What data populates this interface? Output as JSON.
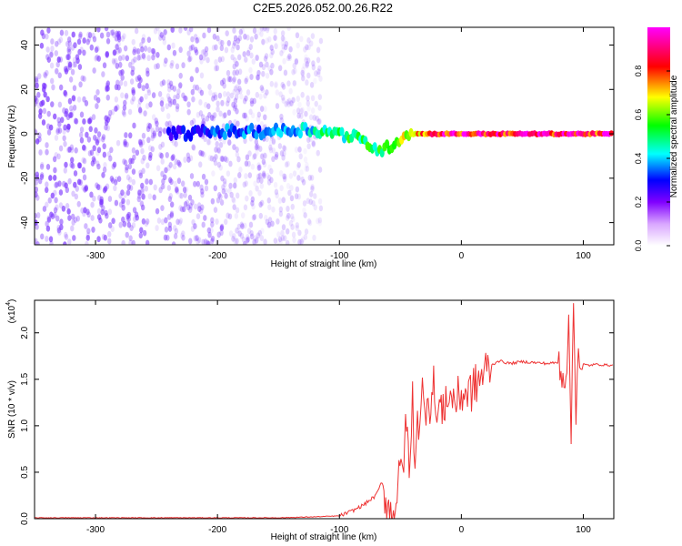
{
  "figure_title": "C2E5.2026.052.00.26.R22",
  "colors": {
    "snr_line": "#ee3333",
    "spectrogram_scatter": "#7a33ff",
    "axis": "#000000"
  },
  "chart_data": [
    {
      "type": "heatmap",
      "title": "",
      "xlabel": "Height of straight line (km)",
      "ylabel": "Frequency (Hz)",
      "xlim": [
        -350,
        125
      ],
      "ylim": [
        -50,
        48
      ],
      "xticks": [
        -300,
        -200,
        -100,
        0,
        100
      ],
      "yticks": [
        -40,
        -20,
        0,
        20,
        40
      ],
      "xtick_labels": [
        "-300",
        "-200",
        "-100",
        "0",
        "100"
      ],
      "ytick_labels": [
        "-40",
        "-20",
        "0",
        "20",
        "40"
      ],
      "colorbar": {
        "label": "Normalized spectral amplitude",
        "range": [
          0,
          1
        ],
        "ticks": [
          0.0,
          0.2,
          0.4,
          0.6,
          0.8
        ],
        "tick_labels": [
          "0.0",
          "0.2",
          "0.4",
          "0.6",
          "0.8"
        ],
        "stops": [
          "#ffffff",
          "#d9a6ff",
          "#8000ff",
          "#0000ff",
          "#00ffff",
          "#00ff00",
          "#ffff00",
          "#ff0000",
          "#ff00ff"
        ]
      },
      "ridge": [
        {
          "x": -240,
          "y": 0,
          "amp": 0.3
        },
        {
          "x": -200,
          "y": 1,
          "amp": 0.35
        },
        {
          "x": -160,
          "y": 1,
          "amp": 0.4
        },
        {
          "x": -130,
          "y": 2,
          "amp": 0.45
        },
        {
          "x": -110,
          "y": 1,
          "amp": 0.5
        },
        {
          "x": -90,
          "y": -1,
          "amp": 0.55
        },
        {
          "x": -75,
          "y": -5,
          "amp": 0.55
        },
        {
          "x": -65,
          "y": -8,
          "amp": 0.6
        },
        {
          "x": -55,
          "y": -4,
          "amp": 0.6
        },
        {
          "x": -45,
          "y": 0,
          "amp": 0.7
        },
        {
          "x": -30,
          "y": 0,
          "amp": 0.8
        },
        {
          "x": -10,
          "y": 0,
          "amp": 0.95
        },
        {
          "x": 20,
          "y": 0,
          "amp": 0.95
        },
        {
          "x": 60,
          "y": 0,
          "amp": 0.95
        },
        {
          "x": 90,
          "y": 0,
          "amp": 0.95
        },
        {
          "x": 125,
          "y": 0,
          "amp": 0.95
        }
      ],
      "scatter_extent": {
        "x_max": -115,
        "y_range": [
          -50,
          48
        ]
      }
    },
    {
      "type": "line",
      "title": "",
      "xlabel": "Height of straight line (km)",
      "ylabel": "SNR (10 * v/v)",
      "y_multiplier_label": "(x10",
      "y_multiplier_exp": "4",
      "y_multiplier_close": ")",
      "xlim": [
        -350,
        125
      ],
      "ylim": [
        0,
        2.35
      ],
      "xticks": [
        -300,
        -200,
        -100,
        0,
        100
      ],
      "yticks": [
        0.0,
        0.5,
        1.0,
        1.5,
        2.0
      ],
      "xtick_labels": [
        "-300",
        "-200",
        "-100",
        "0",
        "100"
      ],
      "ytick_labels": [
        "0.0",
        "0.5",
        "1.0",
        "1.5",
        "2.0"
      ],
      "series": [
        {
          "name": "SNR",
          "x": [
            -350,
            -300,
            -250,
            -200,
            -150,
            -120,
            -100,
            -90,
            -80,
            -70,
            -65,
            -62,
            -58,
            -55,
            -52,
            -48,
            -45,
            -42,
            -40,
            -38,
            -36,
            -34,
            -32,
            -30,
            -28,
            -25,
            -22,
            -20,
            -18,
            -15,
            -12,
            -10,
            -8,
            -5,
            -2,
            0,
            5,
            10,
            15,
            20,
            25,
            30,
            40,
            50,
            60,
            70,
            80,
            85,
            88,
            90,
            92,
            94,
            96,
            98,
            100,
            105,
            110,
            125
          ],
          "y": [
            0.01,
            0.01,
            0.01,
            0.01,
            0.01,
            0.02,
            0.03,
            0.08,
            0.15,
            0.25,
            0.4,
            0.2,
            0.05,
            0.08,
            0.35,
            0.6,
            1.0,
            0.5,
            1.3,
            0.6,
            1.2,
            0.9,
            1.35,
            1.1,
            1.4,
            1.2,
            1.5,
            1.0,
            1.25,
            1.1,
            1.4,
            1.2,
            1.35,
            1.25,
            1.3,
            1.35,
            1.35,
            1.4,
            1.5,
            1.6,
            1.65,
            1.7,
            1.67,
            1.69,
            1.68,
            1.67,
            1.68,
            1.5,
            2.0,
            0.9,
            2.35,
            1.2,
            1.9,
            1.5,
            1.66,
            1.65,
            1.66,
            1.65
          ]
        }
      ]
    }
  ]
}
